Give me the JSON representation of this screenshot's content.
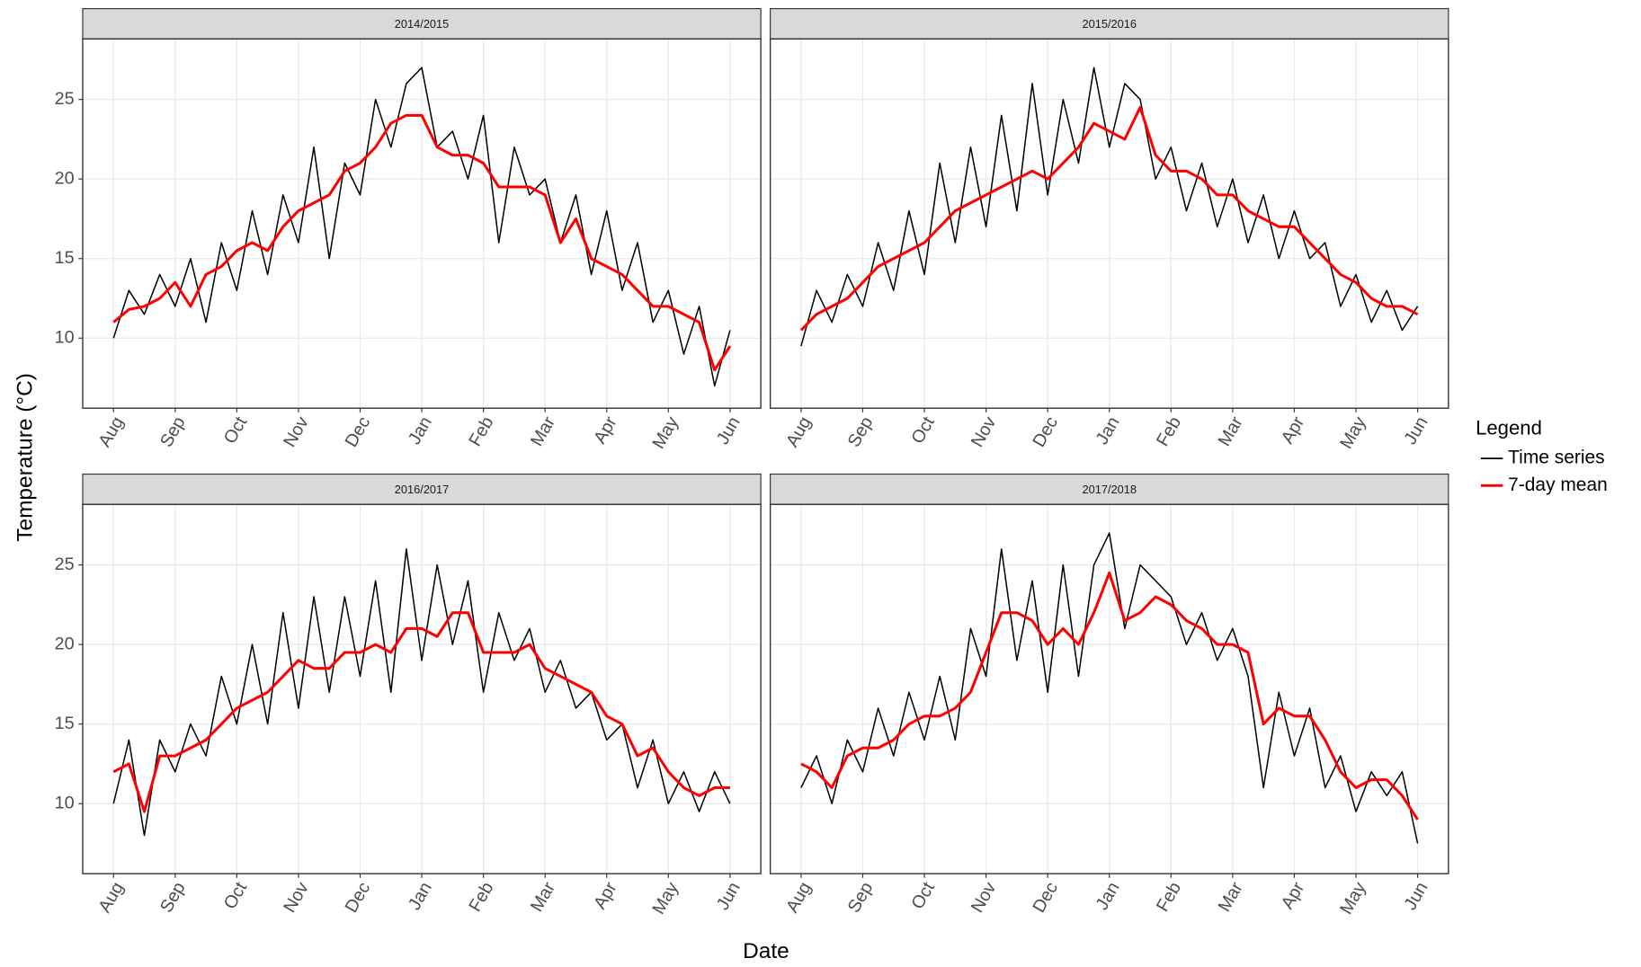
{
  "x_label": "Date",
  "y_label": "Temperature (°C)",
  "legend_title": "Legend",
  "chart_data": [
    {
      "type": "line",
      "title": "2014/2015",
      "x": [
        0,
        0.25,
        0.5,
        0.75,
        1,
        1.25,
        1.5,
        1.75,
        2,
        2.25,
        2.5,
        2.75,
        3,
        3.25,
        3.5,
        3.75,
        4,
        4.25,
        4.5,
        4.75,
        5,
        5.25,
        5.5,
        5.75,
        6,
        6.25,
        6.5,
        6.75,
        7,
        7.25,
        7.5,
        7.75,
        8,
        8.25,
        8.5,
        8.75,
        9,
        9.25,
        9.5,
        9.75,
        10
      ],
      "xlim": [
        -0.5,
        10.5
      ],
      "xticks": [
        {
          "value": 0,
          "label": "Aug"
        },
        {
          "value": 1,
          "label": "Sep"
        },
        {
          "value": 2,
          "label": "Oct"
        },
        {
          "value": 3,
          "label": "Nov"
        },
        {
          "value": 4,
          "label": "Dec"
        },
        {
          "value": 5,
          "label": "Jan"
        },
        {
          "value": 6,
          "label": "Feb"
        },
        {
          "value": 7,
          "label": "Mar"
        },
        {
          "value": 8,
          "label": "Apr"
        },
        {
          "value": 9,
          "label": "May"
        },
        {
          "value": 10,
          "label": "Jun"
        }
      ],
      "ylim": [
        5.6,
        28.8
      ],
      "yticks": [
        10,
        15,
        20,
        25
      ],
      "grid": true,
      "series": [
        {
          "name": "Time series",
          "color": "#000000",
          "values": [
            10,
            13,
            11.5,
            14,
            12,
            15,
            11,
            16,
            13,
            18,
            14,
            19,
            16,
            22,
            15,
            21,
            19,
            25,
            22,
            26,
            27,
            22,
            23,
            20,
            24,
            16,
            22,
            19,
            20,
            16,
            19,
            14,
            18,
            13,
            16,
            11,
            13,
            9,
            12,
            7,
            10.5
          ]
        },
        {
          "name": "7-day mean",
          "color": "#ff0000",
          "values": [
            11,
            11.8,
            12,
            12.5,
            13.5,
            12,
            14,
            14.5,
            15.5,
            16,
            15.5,
            17,
            18,
            18.5,
            19,
            20.5,
            21,
            22,
            23.5,
            24,
            24,
            22,
            21.5,
            21.5,
            21,
            19.5,
            19.5,
            19.5,
            19,
            16,
            17.5,
            15,
            14.5,
            14,
            13,
            12,
            12,
            11.5,
            11,
            8,
            9.5
          ]
        }
      ]
    },
    {
      "type": "line",
      "title": "2015/2016",
      "x": [
        0,
        0.25,
        0.5,
        0.75,
        1,
        1.25,
        1.5,
        1.75,
        2,
        2.25,
        2.5,
        2.75,
        3,
        3.25,
        3.5,
        3.75,
        4,
        4.25,
        4.5,
        4.75,
        5,
        5.25,
        5.5,
        5.75,
        6,
        6.25,
        6.5,
        6.75,
        7,
        7.25,
        7.5,
        7.75,
        8,
        8.25,
        8.5,
        8.75,
        9,
        9.25,
        9.5,
        9.75,
        10
      ],
      "xlim": [
        -0.5,
        10.5
      ],
      "xticks": [
        {
          "value": 0,
          "label": "Aug"
        },
        {
          "value": 1,
          "label": "Sep"
        },
        {
          "value": 2,
          "label": "Oct"
        },
        {
          "value": 3,
          "label": "Nov"
        },
        {
          "value": 4,
          "label": "Dec"
        },
        {
          "value": 5,
          "label": "Jan"
        },
        {
          "value": 6,
          "label": "Feb"
        },
        {
          "value": 7,
          "label": "Mar"
        },
        {
          "value": 8,
          "label": "Apr"
        },
        {
          "value": 9,
          "label": "May"
        },
        {
          "value": 10,
          "label": "Jun"
        }
      ],
      "ylim": [
        5.6,
        28.8
      ],
      "yticks": [
        10,
        15,
        20,
        25
      ],
      "grid": true,
      "series": [
        {
          "name": "Time series",
          "color": "#000000",
          "values": [
            9.5,
            13,
            11,
            14,
            12,
            16,
            13,
            18,
            14,
            21,
            16,
            22,
            17,
            24,
            18,
            26,
            19,
            25,
            21,
            27,
            22,
            26,
            25,
            20,
            22,
            18,
            21,
            17,
            20,
            16,
            19,
            15,
            18,
            15,
            16,
            12,
            14,
            11,
            13,
            10.5,
            12
          ]
        },
        {
          "name": "7-day mean",
          "color": "#ff0000",
          "values": [
            10.5,
            11.5,
            12,
            12.5,
            13.5,
            14.5,
            15,
            15.5,
            16,
            17,
            18,
            18.5,
            19,
            19.5,
            20,
            20.5,
            20,
            21,
            22,
            23.5,
            23,
            22.5,
            24.5,
            21.5,
            20.5,
            20.5,
            20,
            19,
            19,
            18,
            17.5,
            17,
            17,
            16,
            15,
            14,
            13.5,
            12.5,
            12,
            12,
            11.5
          ]
        }
      ]
    },
    {
      "type": "line",
      "title": "2016/2017",
      "x": [
        0,
        0.25,
        0.5,
        0.75,
        1,
        1.25,
        1.5,
        1.75,
        2,
        2.25,
        2.5,
        2.75,
        3,
        3.25,
        3.5,
        3.75,
        4,
        4.25,
        4.5,
        4.75,
        5,
        5.25,
        5.5,
        5.75,
        6,
        6.25,
        6.5,
        6.75,
        7,
        7.25,
        7.5,
        7.75,
        8,
        8.25,
        8.5,
        8.75,
        9,
        9.25,
        9.5,
        9.75,
        10
      ],
      "xlim": [
        -0.5,
        10.5
      ],
      "xticks": [
        {
          "value": 0,
          "label": "Aug"
        },
        {
          "value": 1,
          "label": "Sep"
        },
        {
          "value": 2,
          "label": "Oct"
        },
        {
          "value": 3,
          "label": "Nov"
        },
        {
          "value": 4,
          "label": "Dec"
        },
        {
          "value": 5,
          "label": "Jan"
        },
        {
          "value": 6,
          "label": "Feb"
        },
        {
          "value": 7,
          "label": "Mar"
        },
        {
          "value": 8,
          "label": "Apr"
        },
        {
          "value": 9,
          "label": "May"
        },
        {
          "value": 10,
          "label": "Jun"
        }
      ],
      "ylim": [
        5.6,
        28.8
      ],
      "yticks": [
        10,
        15,
        20,
        25
      ],
      "grid": true,
      "series": [
        {
          "name": "Time series",
          "color": "#000000",
          "values": [
            10,
            14,
            8,
            14,
            12,
            15,
            13,
            18,
            15,
            20,
            15,
            22,
            16,
            23,
            17,
            23,
            18,
            24,
            17,
            26,
            19,
            25,
            20,
            24,
            17,
            22,
            19,
            21,
            17,
            19,
            16,
            17,
            14,
            15,
            11,
            14,
            10,
            12,
            9.5,
            12,
            10
          ]
        },
        {
          "name": "7-day mean",
          "color": "#ff0000",
          "values": [
            12,
            12.5,
            9.5,
            13,
            13,
            13.5,
            14,
            15,
            16,
            16.5,
            17,
            18,
            19,
            18.5,
            18.5,
            19.5,
            19.5,
            20,
            19.5,
            21,
            21,
            20.5,
            22,
            22,
            19.5,
            19.5,
            19.5,
            20,
            18.5,
            18,
            17.5,
            17,
            15.5,
            15,
            13,
            13.5,
            12,
            11,
            10.5,
            11,
            11
          ]
        }
      ]
    },
    {
      "type": "line",
      "title": "2017/2018",
      "x": [
        0,
        0.25,
        0.5,
        0.75,
        1,
        1.25,
        1.5,
        1.75,
        2,
        2.25,
        2.5,
        2.75,
        3,
        3.25,
        3.5,
        3.75,
        4,
        4.25,
        4.5,
        4.75,
        5,
        5.25,
        5.5,
        5.75,
        6,
        6.25,
        6.5,
        6.75,
        7,
        7.25,
        7.5,
        7.75,
        8,
        8.25,
        8.5,
        8.75,
        9,
        9.25,
        9.5,
        9.75,
        10
      ],
      "xlim": [
        -0.5,
        10.5
      ],
      "xticks": [
        {
          "value": 0,
          "label": "Aug"
        },
        {
          "value": 1,
          "label": "Sep"
        },
        {
          "value": 2,
          "label": "Oct"
        },
        {
          "value": 3,
          "label": "Nov"
        },
        {
          "value": 4,
          "label": "Dec"
        },
        {
          "value": 5,
          "label": "Jan"
        },
        {
          "value": 6,
          "label": "Feb"
        },
        {
          "value": 7,
          "label": "Mar"
        },
        {
          "value": 8,
          "label": "Apr"
        },
        {
          "value": 9,
          "label": "May"
        },
        {
          "value": 10,
          "label": "Jun"
        }
      ],
      "ylim": [
        5.6,
        28.8
      ],
      "yticks": [
        10,
        15,
        20,
        25
      ],
      "grid": true,
      "series": [
        {
          "name": "Time series",
          "color": "#000000",
          "values": [
            11,
            13,
            10,
            14,
            12,
            16,
            13,
            17,
            14,
            18,
            14,
            21,
            18,
            26,
            19,
            24,
            17,
            25,
            18,
            25,
            27,
            21,
            25,
            24,
            23,
            20,
            22,
            19,
            21,
            18,
            11,
            17,
            13,
            16,
            11,
            13,
            9.5,
            12,
            10.5,
            12,
            7.5
          ]
        },
        {
          "name": "7-day mean",
          "color": "#ff0000",
          "values": [
            12.5,
            12,
            11,
            13,
            13.5,
            13.5,
            14,
            15,
            15.5,
            15.5,
            16,
            17,
            19.5,
            22,
            22,
            21.5,
            20,
            21,
            20,
            22,
            24.5,
            21.5,
            22,
            23,
            22.5,
            21.5,
            21,
            20,
            20,
            19.5,
            15,
            16,
            15.5,
            15.5,
            14,
            12,
            11,
            11.5,
            11.5,
            10.5,
            9
          ]
        }
      ]
    }
  ]
}
